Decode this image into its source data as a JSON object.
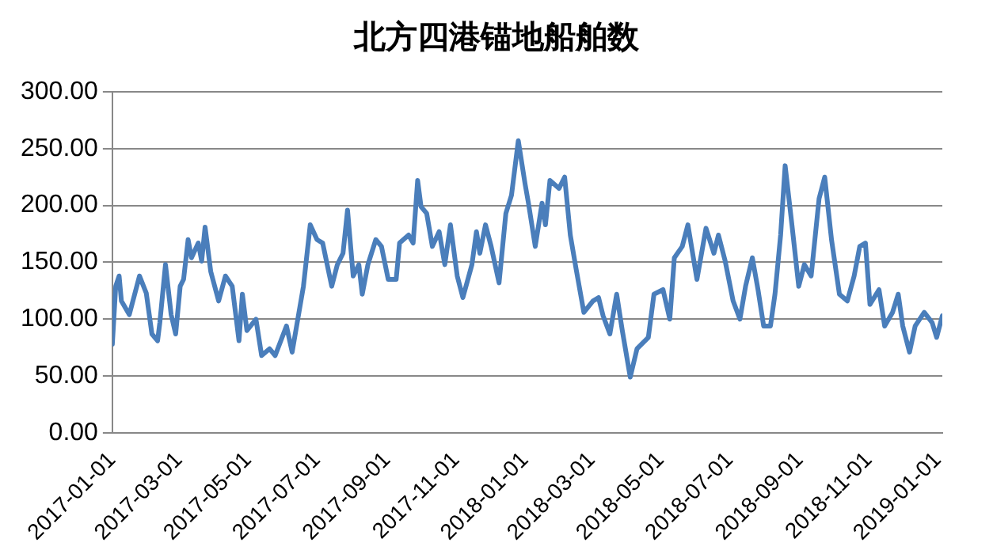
{
  "chart_data": {
    "type": "line",
    "title": "北方四港锚地船舶数",
    "xlim": [
      "2017-01-01",
      "2019-01-05"
    ],
    "xticks": [
      "2017-01-01",
      "2017-03-01",
      "2017-05-01",
      "2017-07-01",
      "2017-09-01",
      "2017-11-01",
      "2018-01-01",
      "2018-03-01",
      "2018-05-01",
      "2018-07-01",
      "2018-09-01",
      "2018-11-01",
      "2019-01-01"
    ],
    "ylim": [
      0,
      300
    ],
    "yticks": [
      {
        "value": 0,
        "label": "0.00"
      },
      {
        "value": 50,
        "label": "50.00"
      },
      {
        "value": 100,
        "label": "100.00"
      },
      {
        "value": 150,
        "label": "150.00"
      },
      {
        "value": 200,
        "label": "200.00"
      },
      {
        "value": 250,
        "label": "250.00"
      },
      {
        "value": 300,
        "label": "300.00"
      }
    ],
    "grid": "y",
    "legend": false,
    "marker": "none",
    "line_style": "solid",
    "series": [
      {
        "color": "#4a7ebb",
        "x": [
          "2017-01-01",
          "2017-01-04",
          "2017-01-07",
          "2017-01-09",
          "2017-01-16",
          "2017-01-25",
          "2017-01-31",
          "2017-02-05",
          "2017-02-10",
          "2017-02-12",
          "2017-02-17",
          "2017-02-22",
          "2017-02-26",
          "2017-03-02",
          "2017-03-05",
          "2017-03-09",
          "2017-03-12",
          "2017-03-18",
          "2017-03-21",
          "2017-03-24",
          "2017-03-29",
          "2017-04-05",
          "2017-04-11",
          "2017-04-17",
          "2017-04-23",
          "2017-04-26",
          "2017-04-30",
          "2017-05-08",
          "2017-05-13",
          "2017-05-20",
          "2017-05-25",
          "2017-06-04",
          "2017-06-09",
          "2017-06-14",
          "2017-06-19",
          "2017-06-25",
          "2017-07-01",
          "2017-07-06",
          "2017-07-14",
          "2017-07-19",
          "2017-07-24",
          "2017-07-28",
          "2017-08-02",
          "2017-08-07",
          "2017-08-10",
          "2017-08-15",
          "2017-08-22",
          "2017-08-27",
          "2017-09-02",
          "2017-09-09",
          "2017-09-12",
          "2017-09-20",
          "2017-09-24",
          "2017-09-28",
          "2017-10-01",
          "2017-10-06",
          "2017-10-11",
          "2017-10-17",
          "2017-10-22",
          "2017-10-27",
          "2017-11-02",
          "2017-11-07",
          "2017-11-15",
          "2017-11-19",
          "2017-11-22",
          "2017-11-27",
          "2017-12-02",
          "2017-12-09",
          "2017-12-15",
          "2017-12-20",
          "2017-12-26",
          "2018-01-01",
          "2018-01-04",
          "2018-01-10",
          "2018-01-16",
          "2018-01-19",
          "2018-01-23",
          "2018-01-31",
          "2018-02-05",
          "2018-02-10",
          "2018-02-15",
          "2018-02-22",
          "2018-03-02",
          "2018-03-07",
          "2018-03-11",
          "2018-03-17",
          "2018-03-23",
          "2018-03-28",
          "2018-04-04",
          "2018-04-10",
          "2018-04-20",
          "2018-04-25",
          "2018-05-03",
          "2018-05-09",
          "2018-05-13",
          "2018-05-20",
          "2018-05-25",
          "2018-06-02",
          "2018-06-10",
          "2018-06-17",
          "2018-06-21",
          "2018-06-27",
          "2018-07-04",
          "2018-07-10",
          "2018-07-15",
          "2018-07-21",
          "2018-07-26",
          "2018-07-31",
          "2018-08-06",
          "2018-08-10",
          "2018-08-15",
          "2018-08-19",
          "2018-08-25",
          "2018-08-31",
          "2018-09-05",
          "2018-09-11",
          "2018-09-18",
          "2018-09-23",
          "2018-09-29",
          "2018-10-06",
          "2018-10-13",
          "2018-10-19",
          "2018-10-24",
          "2018-10-29",
          "2018-11-02",
          "2018-11-10",
          "2018-11-15",
          "2018-11-22",
          "2018-11-27",
          "2018-12-01",
          "2018-12-07",
          "2018-12-12",
          "2018-12-20",
          "2018-12-27",
          "2018-12-31",
          "2019-01-05"
        ],
        "values": [
          78,
          129,
          138,
          116,
          104,
          138,
          123,
          87,
          81,
          97,
          148,
          104,
          87,
          129,
          135,
          170,
          154,
          167,
          151,
          181,
          142,
          116,
          138,
          129,
          81,
          122,
          90,
          100,
          68,
          74,
          68,
          94,
          71,
          100,
          129,
          183,
          170,
          167,
          129,
          148,
          158,
          196,
          138,
          148,
          122,
          148,
          170,
          164,
          135,
          135,
          167,
          174,
          167,
          222,
          199,
          193,
          164,
          177,
          148,
          183,
          138,
          119,
          148,
          177,
          158,
          183,
          164,
          132,
          193,
          209,
          257,
          219,
          202,
          164,
          202,
          183,
          222,
          215,
          225,
          174,
          145,
          106,
          116,
          119,
          103,
          87,
          122,
          90,
          49,
          74,
          84,
          122,
          126,
          100,
          154,
          164,
          183,
          135,
          180,
          158,
          174,
          151,
          116,
          100,
          129,
          154,
          126,
          94,
          94,
          122,
          174,
          235,
          183,
          129,
          148,
          138,
          206,
          225,
          170,
          122,
          116,
          138,
          164,
          167,
          113,
          126,
          94,
          106,
          122,
          94,
          71,
          94,
          106,
          97,
          84,
          103
        ]
      }
    ]
  }
}
